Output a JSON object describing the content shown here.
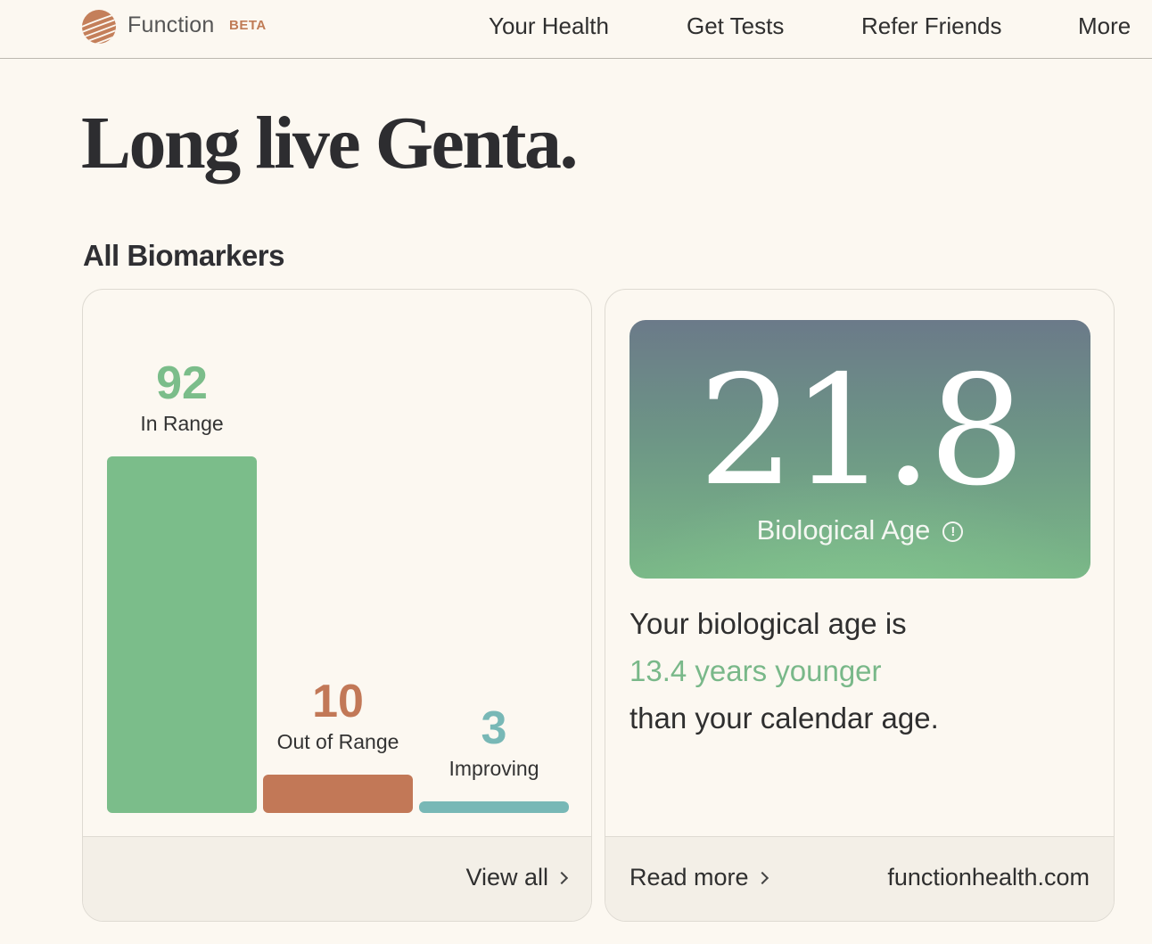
{
  "header": {
    "brand": "Function",
    "badge": "BETA",
    "nav": [
      "Your Health",
      "Get Tests",
      "Refer Friends",
      "More"
    ]
  },
  "headline": "Long live Genta.",
  "biomarkers": {
    "section_title": "All Biomarkers",
    "footer_link": "View all",
    "colors": {
      "in_range": "#7bbd8a",
      "out_of_range": "#c27857",
      "improving": "#78b8b6"
    }
  },
  "chart_data": {
    "type": "bar",
    "categories": [
      "In Range",
      "Out of Range",
      "Improving"
    ],
    "values": [
      92,
      10,
      3
    ],
    "title": "",
    "xlabel": "",
    "ylabel": ""
  },
  "biological_age": {
    "value": "21.8",
    "label": "Biological Age",
    "info_icon": "info-circle-icon",
    "line1": "Your biological age is",
    "line2": "13.4 years younger",
    "line3": "than your calendar age.",
    "read_more": "Read more",
    "site": "functionhealth.com"
  }
}
